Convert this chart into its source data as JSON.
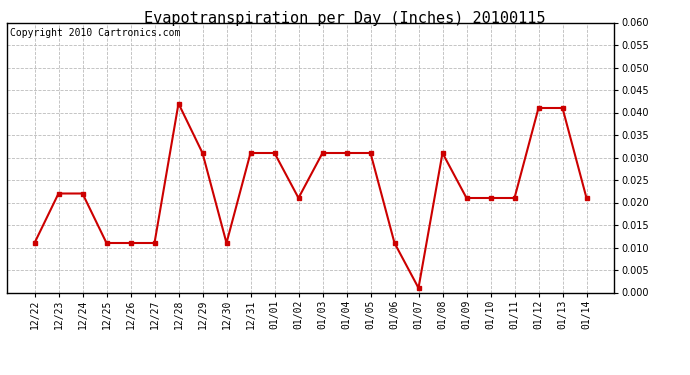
{
  "title": "Evapotranspiration per Day (Inches) 20100115",
  "copyright": "Copyright 2010 Cartronics.com",
  "labels": [
    "12/22",
    "12/23",
    "12/24",
    "12/25",
    "12/26",
    "12/27",
    "12/28",
    "12/29",
    "12/30",
    "12/31",
    "01/01",
    "01/02",
    "01/03",
    "01/04",
    "01/05",
    "01/06",
    "01/07",
    "01/08",
    "01/09",
    "01/10",
    "01/11",
    "01/12",
    "01/13",
    "01/14"
  ],
  "values": [
    0.011,
    0.022,
    0.022,
    0.011,
    0.011,
    0.011,
    0.042,
    0.031,
    0.011,
    0.031,
    0.031,
    0.021,
    0.031,
    0.031,
    0.031,
    0.011,
    0.001,
    0.031,
    0.021,
    0.021,
    0.021,
    0.041,
    0.041,
    0.021
  ],
  "line_color": "#cc0000",
  "marker": "s",
  "marker_size": 3,
  "ylim": [
    0.0,
    0.06
  ],
  "yticks": [
    0.0,
    0.005,
    0.01,
    0.015,
    0.02,
    0.025,
    0.03,
    0.035,
    0.04,
    0.045,
    0.05,
    0.055,
    0.06
  ],
  "grid_color": "#bbbbbb",
  "bg_color": "#ffffff",
  "title_fontsize": 11,
  "copyright_fontsize": 7,
  "tick_fontsize": 7,
  "linewidth": 1.5
}
